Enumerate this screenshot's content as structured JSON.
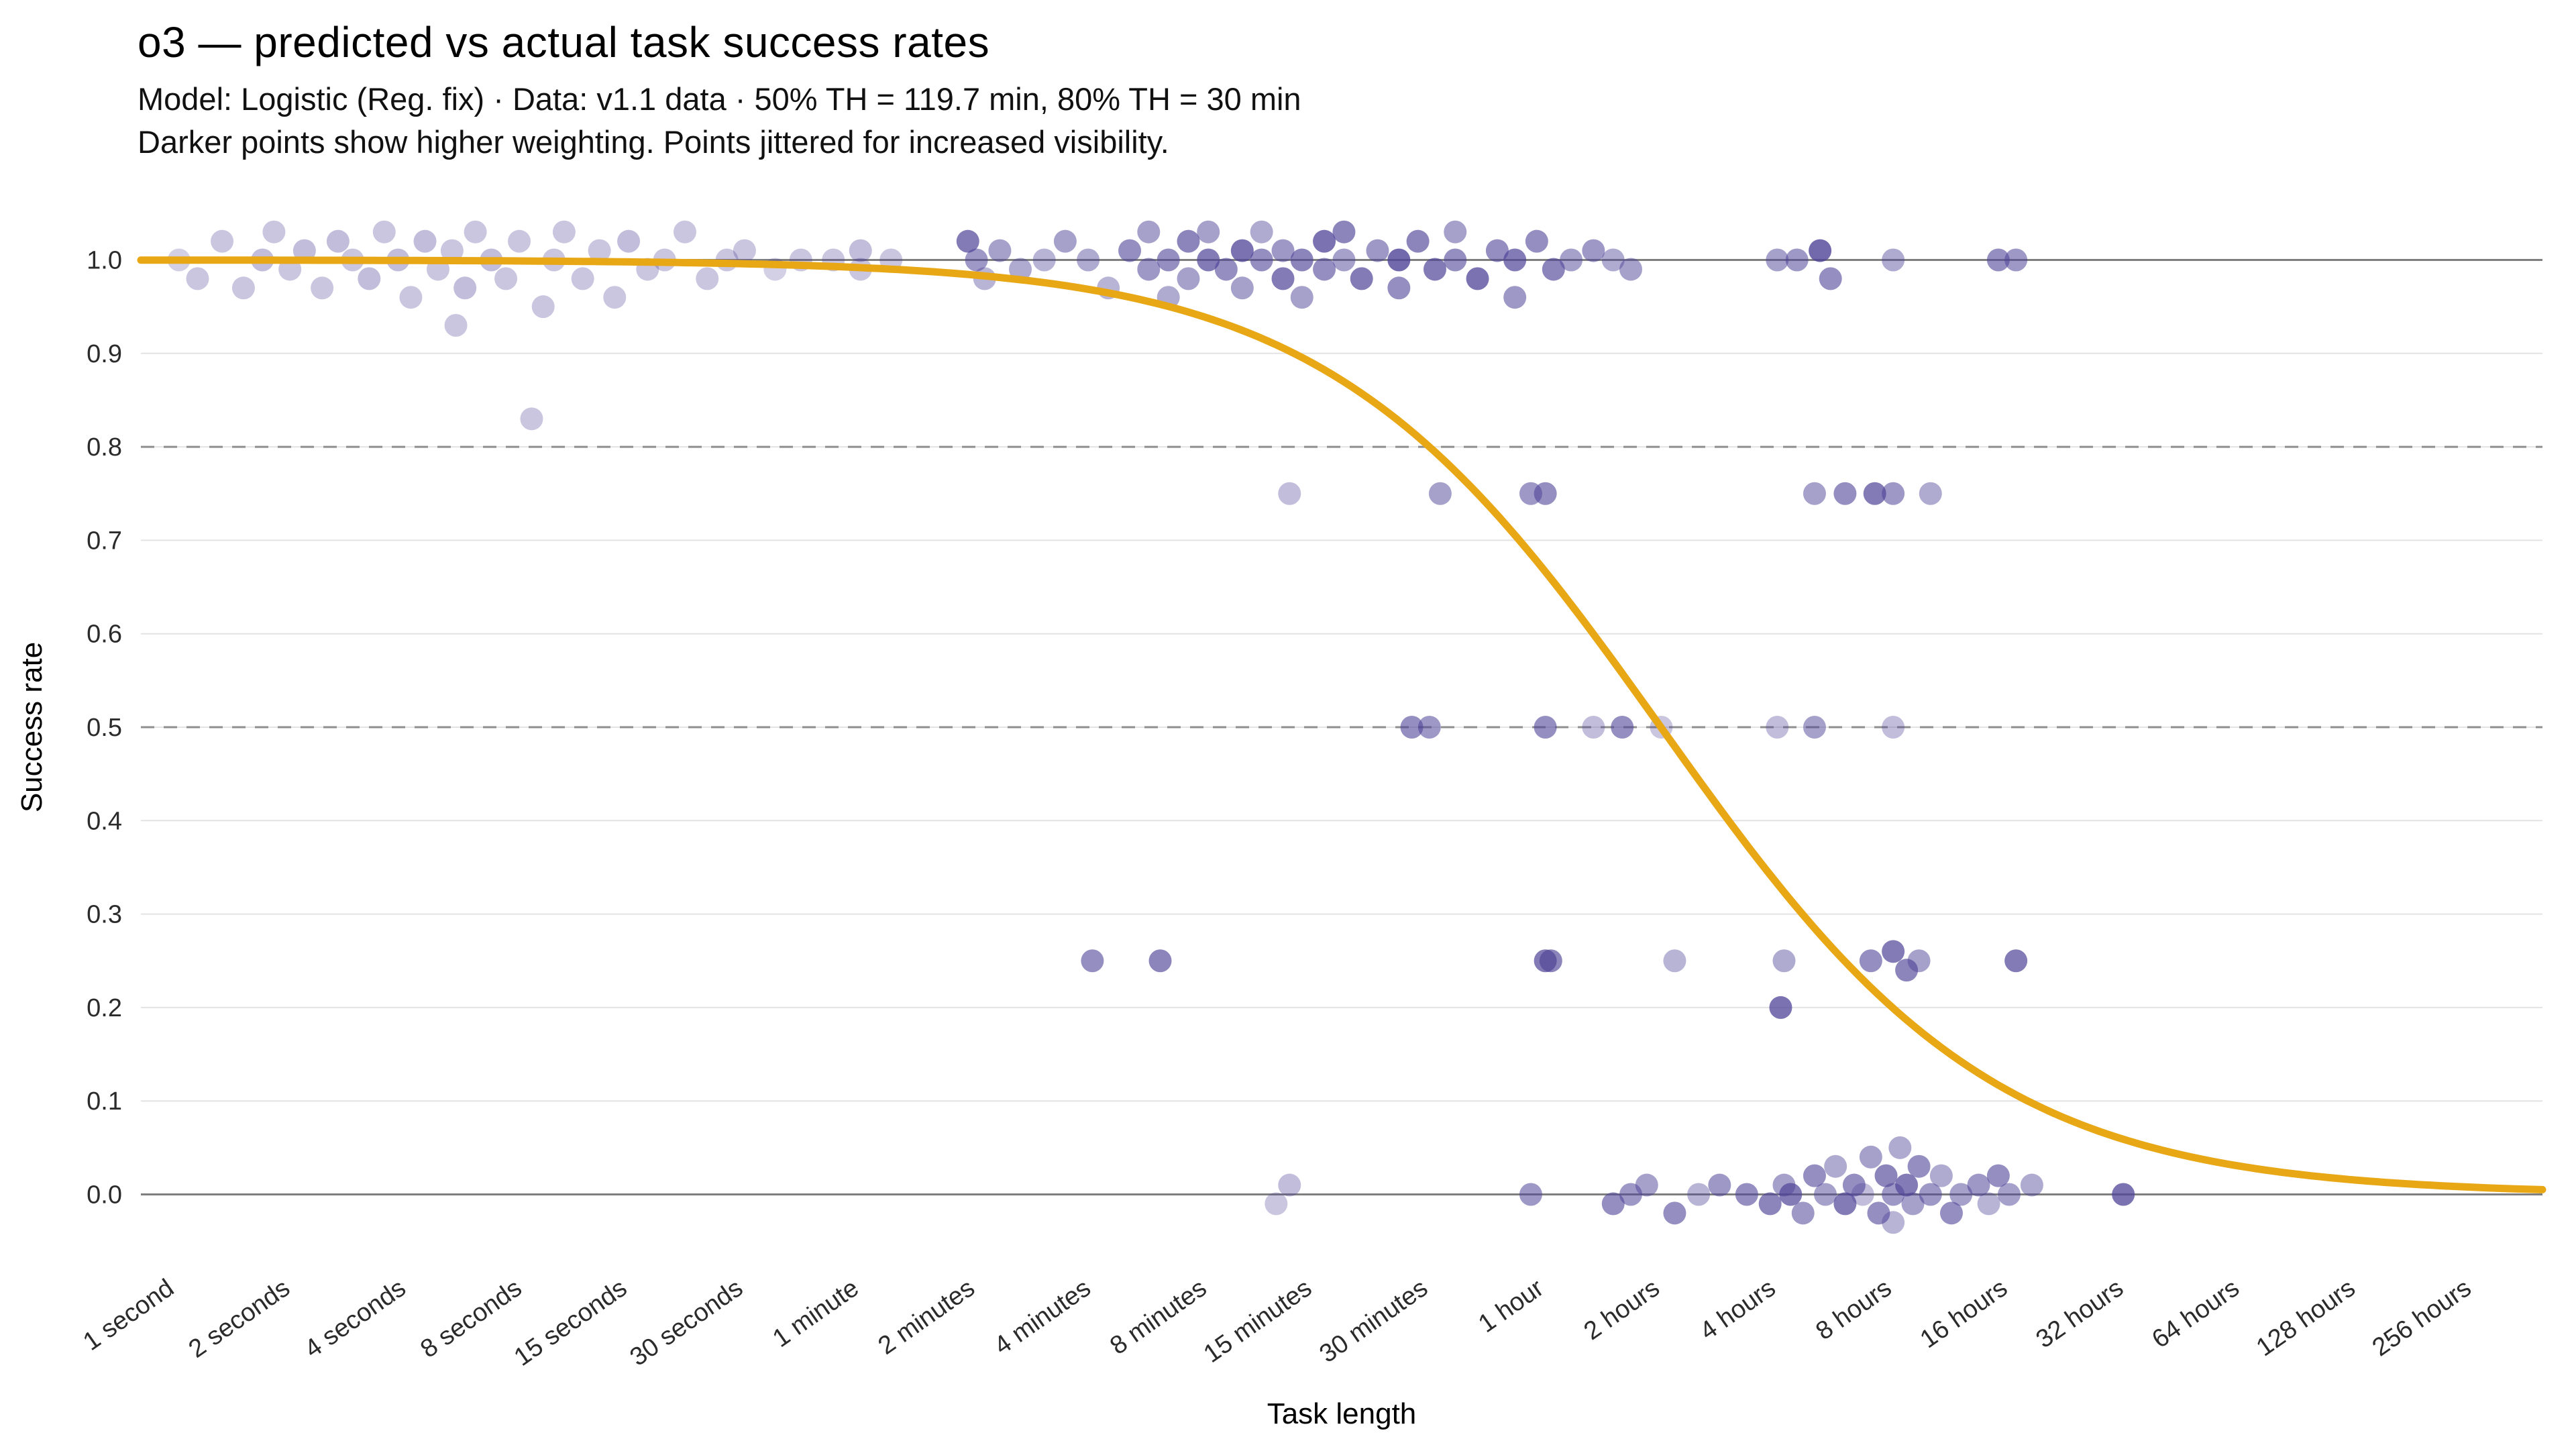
{
  "header": {
    "title": "o3 — predicted vs actual task success rates",
    "subtitle_line1": "Model: Logistic (Reg. fix) · Data: v1.1 data · 50% TH = 119.7 min, 80% TH = 30 min",
    "subtitle_line2": "Darker points show higher weighting. Points jittered for increased visibility."
  },
  "chart_data": {
    "type": "scatter",
    "title": "o3 — predicted vs actual task success rates",
    "xlabel": "Task length",
    "ylabel": "Success rate",
    "x_scale": "log2",
    "x_unit": "minutes",
    "ylim": [
      -0.07,
      1.07
    ],
    "grid": "horizontal-only",
    "x_ticks": [
      {
        "label": "1 second",
        "minutes": 0.016667
      },
      {
        "label": "2 seconds",
        "minutes": 0.033333
      },
      {
        "label": "4 seconds",
        "minutes": 0.066667
      },
      {
        "label": "8 seconds",
        "minutes": 0.133333
      },
      {
        "label": "15 seconds",
        "minutes": 0.25
      },
      {
        "label": "30 seconds",
        "minutes": 0.5
      },
      {
        "label": "1 minute",
        "minutes": 1
      },
      {
        "label": "2 minutes",
        "minutes": 2
      },
      {
        "label": "4 minutes",
        "minutes": 4
      },
      {
        "label": "8 minutes",
        "minutes": 8
      },
      {
        "label": "15 minutes",
        "minutes": 15
      },
      {
        "label": "30 minutes",
        "minutes": 30
      },
      {
        "label": "1 hour",
        "minutes": 60
      },
      {
        "label": "2 hours",
        "minutes": 120
      },
      {
        "label": "4 hours",
        "minutes": 240
      },
      {
        "label": "8 hours",
        "minutes": 480
      },
      {
        "label": "16 hours",
        "minutes": 960
      },
      {
        "label": "32 hours",
        "minutes": 1920
      },
      {
        "label": "64 hours",
        "minutes": 3840
      },
      {
        "label": "128 hours",
        "minutes": 7680
      },
      {
        "label": "256 hours",
        "minutes": 15360
      }
    ],
    "y_ticks": [
      "0.0",
      "0.1",
      "0.2",
      "0.3",
      "0.4",
      "0.5",
      "0.6",
      "0.7",
      "0.8",
      "0.9",
      "1.0"
    ],
    "solid_hlines": [
      0.0,
      1.0
    ],
    "dashed_hlines": [
      0.5,
      0.8
    ],
    "curve": {
      "type": "logistic",
      "color": "#E8A714",
      "p50_minutes": 119.7,
      "p80_minutes": 30,
      "description": "success = 1 / (1 + (x/119.7)^s), s fit so that success(30 min)=0.8"
    },
    "points_color": "#4E4397",
    "points_format": "[task_length_minutes, success_rate_with_jitter, weight_opacity]",
    "points": [
      [
        0.017,
        1.0,
        0.25
      ],
      [
        0.019,
        0.98,
        0.3
      ],
      [
        0.022,
        1.02,
        0.3
      ],
      [
        0.025,
        0.97,
        0.3
      ],
      [
        0.028,
        1.0,
        0.35
      ],
      [
        0.03,
        1.03,
        0.3
      ],
      [
        0.033,
        0.99,
        0.3
      ],
      [
        0.036,
        1.01,
        0.35
      ],
      [
        0.04,
        0.97,
        0.3
      ],
      [
        0.044,
        1.02,
        0.35
      ],
      [
        0.048,
        1.0,
        0.3
      ],
      [
        0.053,
        0.98,
        0.35
      ],
      [
        0.058,
        1.03,
        0.3
      ],
      [
        0.063,
        1.0,
        0.35
      ],
      [
        0.068,
        0.96,
        0.3
      ],
      [
        0.074,
        1.02,
        0.35
      ],
      [
        0.08,
        0.99,
        0.3
      ],
      [
        0.087,
        1.01,
        0.3
      ],
      [
        0.094,
        0.97,
        0.35
      ],
      [
        0.1,
        1.03,
        0.3
      ],
      [
        0.11,
        1.0,
        0.35
      ],
      [
        0.12,
        0.98,
        0.3
      ],
      [
        0.13,
        1.02,
        0.3
      ],
      [
        0.089,
        0.93,
        0.3
      ],
      [
        0.15,
        0.95,
        0.3
      ],
      [
        0.16,
        1.0,
        0.3
      ],
      [
        0.17,
        1.03,
        0.3
      ],
      [
        0.19,
        0.98,
        0.3
      ],
      [
        0.21,
        1.01,
        0.3
      ],
      [
        0.23,
        0.96,
        0.3
      ],
      [
        0.25,
        1.02,
        0.35
      ],
      [
        0.28,
        0.99,
        0.3
      ],
      [
        0.31,
        1.0,
        0.3
      ],
      [
        0.35,
        1.03,
        0.3
      ],
      [
        0.4,
        0.98,
        0.3
      ],
      [
        0.45,
        1.0,
        0.3
      ],
      [
        0.5,
        1.01,
        0.3
      ],
      [
        0.6,
        0.99,
        0.25
      ],
      [
        0.7,
        1.0,
        0.3
      ],
      [
        0.85,
        1.0,
        0.3
      ],
      [
        1.0,
        1.01,
        0.35
      ],
      [
        1.0,
        0.99,
        0.3
      ],
      [
        1.2,
        1.0,
        0.3
      ],
      [
        1.9,
        1.02,
        0.7
      ],
      [
        2.0,
        1.0,
        0.55
      ],
      [
        2.1,
        0.98,
        0.4
      ],
      [
        2.3,
        1.01,
        0.5
      ],
      [
        2.6,
        0.99,
        0.45
      ],
      [
        3.0,
        1.0,
        0.4
      ],
      [
        3.4,
        1.02,
        0.5
      ],
      [
        3.9,
        1.0,
        0.45
      ],
      [
        4.4,
        0.97,
        0.4
      ],
      [
        5.0,
        1.01,
        0.6
      ],
      [
        5.6,
        1.03,
        0.5
      ],
      [
        5.6,
        0.99,
        0.55
      ],
      [
        6.3,
        1.0,
        0.6
      ],
      [
        6.3,
        0.96,
        0.45
      ],
      [
        7.1,
        1.02,
        0.65
      ],
      [
        7.1,
        0.98,
        0.5
      ],
      [
        8.0,
        1.0,
        0.7
      ],
      [
        8.0,
        1.03,
        0.5
      ],
      [
        8.9,
        0.99,
        0.6
      ],
      [
        9.8,
        1.01,
        0.75
      ],
      [
        9.8,
        0.97,
        0.5
      ],
      [
        11,
        1.0,
        0.6
      ],
      [
        11,
        1.03,
        0.45
      ],
      [
        12.5,
        0.98,
        0.7
      ],
      [
        12.5,
        1.01,
        0.55
      ],
      [
        14,
        1.0,
        0.65
      ],
      [
        14,
        0.96,
        0.5
      ],
      [
        16,
        1.02,
        0.75
      ],
      [
        16,
        0.99,
        0.6
      ],
      [
        18,
        1.0,
        0.5
      ],
      [
        18,
        1.03,
        0.65
      ],
      [
        20,
        0.98,
        0.7
      ],
      [
        22,
        1.01,
        0.55
      ],
      [
        25,
        1.0,
        0.8
      ],
      [
        25,
        0.97,
        0.6
      ],
      [
        28,
        1.02,
        0.65
      ],
      [
        31,
        0.99,
        0.7
      ],
      [
        35,
        1.0,
        0.6
      ],
      [
        35,
        1.03,
        0.5
      ],
      [
        40,
        0.98,
        0.75
      ],
      [
        45,
        1.01,
        0.6
      ],
      [
        50,
        1.0,
        0.7
      ],
      [
        50,
        0.96,
        0.55
      ],
      [
        57,
        1.02,
        0.6
      ],
      [
        63,
        0.99,
        0.65
      ],
      [
        70,
        1.0,
        0.5
      ],
      [
        80,
        1.01,
        0.55
      ],
      [
        90,
        1.0,
        0.45
      ],
      [
        100,
        0.99,
        0.5
      ],
      [
        240,
        1.0,
        0.5
      ],
      [
        270,
        1.0,
        0.55
      ],
      [
        310,
        1.01,
        0.8
      ],
      [
        330,
        0.98,
        0.6
      ],
      [
        480,
        1.0,
        0.45
      ],
      [
        900,
        1.0,
        0.6
      ],
      [
        1000,
        1.0,
        0.55
      ],
      [
        0.14,
        0.83,
        0.3
      ],
      [
        13,
        0.75,
        0.35
      ],
      [
        32,
        0.75,
        0.5
      ],
      [
        55,
        0.75,
        0.55
      ],
      [
        60,
        0.75,
        0.6
      ],
      [
        300,
        0.75,
        0.5
      ],
      [
        360,
        0.75,
        0.6
      ],
      [
        430,
        0.75,
        0.7
      ],
      [
        480,
        0.75,
        0.55
      ],
      [
        600,
        0.75,
        0.45
      ],
      [
        27,
        0.5,
        0.6
      ],
      [
        30,
        0.5,
        0.55
      ],
      [
        60,
        0.5,
        0.6
      ],
      [
        80,
        0.5,
        0.35
      ],
      [
        95,
        0.5,
        0.6
      ],
      [
        120,
        0.5,
        0.3
      ],
      [
        240,
        0.5,
        0.35
      ],
      [
        300,
        0.5,
        0.5
      ],
      [
        480,
        0.5,
        0.35
      ],
      [
        4,
        0.25,
        0.6
      ],
      [
        6,
        0.25,
        0.65
      ],
      [
        60,
        0.25,
        0.7
      ],
      [
        62,
        0.25,
        0.65
      ],
      [
        130,
        0.25,
        0.4
      ],
      [
        250,
        0.25,
        0.45
      ],
      [
        420,
        0.25,
        0.6
      ],
      [
        480,
        0.26,
        0.7
      ],
      [
        520,
        0.24,
        0.65
      ],
      [
        560,
        0.25,
        0.5
      ],
      [
        1000,
        0.25,
        0.7
      ],
      [
        245,
        0.2,
        0.75
      ],
      [
        13,
        0.01,
        0.35
      ],
      [
        12,
        -0.01,
        0.3
      ],
      [
        55,
        0.0,
        0.55
      ],
      [
        90,
        -0.01,
        0.6
      ],
      [
        100,
        0.0,
        0.55
      ],
      [
        110,
        0.01,
        0.5
      ],
      [
        130,
        -0.02,
        0.6
      ],
      [
        150,
        0.0,
        0.4
      ],
      [
        170,
        0.01,
        0.55
      ],
      [
        200,
        0.0,
        0.6
      ],
      [
        230,
        -0.01,
        0.65
      ],
      [
        250,
        0.01,
        0.5
      ],
      [
        260,
        0.0,
        0.7
      ],
      [
        280,
        -0.02,
        0.55
      ],
      [
        300,
        0.02,
        0.6
      ],
      [
        320,
        0.0,
        0.5
      ],
      [
        340,
        0.03,
        0.45
      ],
      [
        360,
        -0.01,
        0.7
      ],
      [
        380,
        0.01,
        0.6
      ],
      [
        400,
        0.0,
        0.35
      ],
      [
        420,
        0.04,
        0.5
      ],
      [
        440,
        -0.02,
        0.6
      ],
      [
        460,
        0.02,
        0.65
      ],
      [
        480,
        0.0,
        0.55
      ],
      [
        480,
        -0.03,
        0.4
      ],
      [
        500,
        0.05,
        0.45
      ],
      [
        520,
        0.01,
        0.7
      ],
      [
        540,
        -0.01,
        0.5
      ],
      [
        560,
        0.03,
        0.6
      ],
      [
        600,
        0.0,
        0.55
      ],
      [
        640,
        0.02,
        0.45
      ],
      [
        680,
        -0.02,
        0.6
      ],
      [
        720,
        0.0,
        0.5
      ],
      [
        800,
        0.01,
        0.55
      ],
      [
        850,
        -0.01,
        0.4
      ],
      [
        900,
        0.02,
        0.6
      ],
      [
        960,
        0.0,
        0.5
      ],
      [
        1100,
        0.01,
        0.45
      ],
      [
        1900,
        0.0,
        0.75
      ]
    ]
  }
}
